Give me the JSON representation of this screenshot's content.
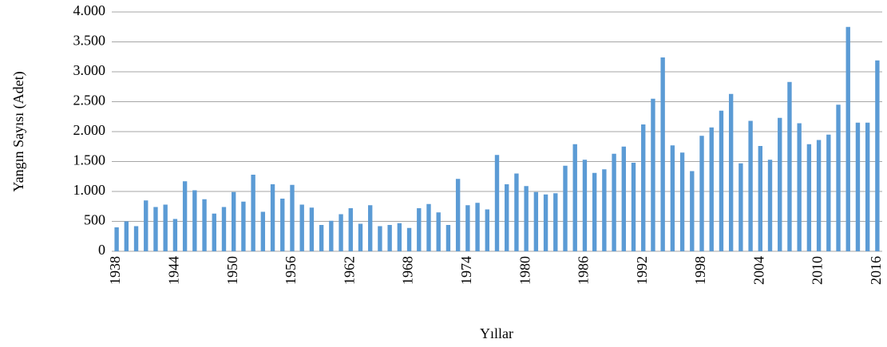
{
  "chart_data": {
    "type": "bar",
    "y_label": "Yangın Sayısı (Adet)",
    "x_label": "Yıllar",
    "color": "#5b9bd5",
    "grid": true,
    "ylim": [
      0,
      4000
    ],
    "yticks": [
      0,
      500,
      {
        "value": 1000,
        "label": "1.000"
      },
      {
        "value": 1500,
        "label": "1.500"
      },
      {
        "value": 2000,
        "label": "2.000"
      },
      {
        "value": 2500,
        "label": "2.500"
      },
      {
        "value": 3000,
        "label": "3.000"
      },
      {
        "value": 3500,
        "label": "3.500"
      },
      {
        "value": 4000,
        "label": "4.000"
      }
    ],
    "categories": [
      "1938",
      null,
      null,
      null,
      null,
      null,
      "1944",
      null,
      null,
      null,
      null,
      null,
      "1950",
      null,
      null,
      null,
      null,
      null,
      "1956",
      null,
      null,
      null,
      null,
      null,
      "1962",
      null,
      null,
      null,
      null,
      null,
      "1968",
      null,
      null,
      null,
      null,
      null,
      "1974",
      null,
      null,
      null,
      null,
      null,
      "1980",
      null,
      null,
      null,
      null,
      null,
      "1986",
      null,
      null,
      null,
      null,
      null,
      "1992",
      null,
      null,
      null,
      null,
      null,
      "1998",
      null,
      null,
      null,
      null,
      null,
      "2004",
      null,
      null,
      null,
      null,
      null,
      "2010",
      null,
      null,
      null,
      null,
      null,
      "2016"
    ],
    "values": [
      400,
      500,
      420,
      850,
      740,
      780,
      540,
      1170,
      1020,
      870,
      630,
      740,
      990,
      830,
      1280,
      660,
      1120,
      880,
      1110,
      780,
      730,
      440,
      510,
      620,
      720,
      460,
      770,
      420,
      440,
      470,
      390,
      720,
      790,
      650,
      440,
      1210,
      770,
      810,
      700,
      1610,
      1120,
      1300,
      1090,
      990,
      950,
      970,
      1430,
      1790,
      1530,
      1310,
      1370,
      1630,
      1750,
      1480,
      2120,
      2550,
      3240,
      1770,
      1650,
      1340,
      1930,
      2070,
      2350,
      2630,
      1470,
      2180,
      1760,
      1530,
      2230,
      2830,
      2140,
      1790,
      1860,
      1950,
      2450,
      3750,
      2150,
      2150,
      3190
    ]
  }
}
